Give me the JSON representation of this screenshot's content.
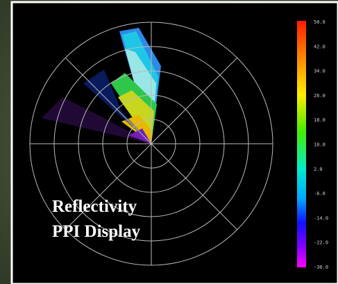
{
  "title_lines": [
    "Reflectivity",
    "PPI Display"
  ],
  "colorbar": {
    "labels": [
      "50.0",
      "42.0",
      "34.0",
      "26.0",
      "18.0",
      "10.0",
      "2.0",
      "-6.0",
      "-14.0",
      "-22.0",
      "-30.0"
    ]
  }
}
